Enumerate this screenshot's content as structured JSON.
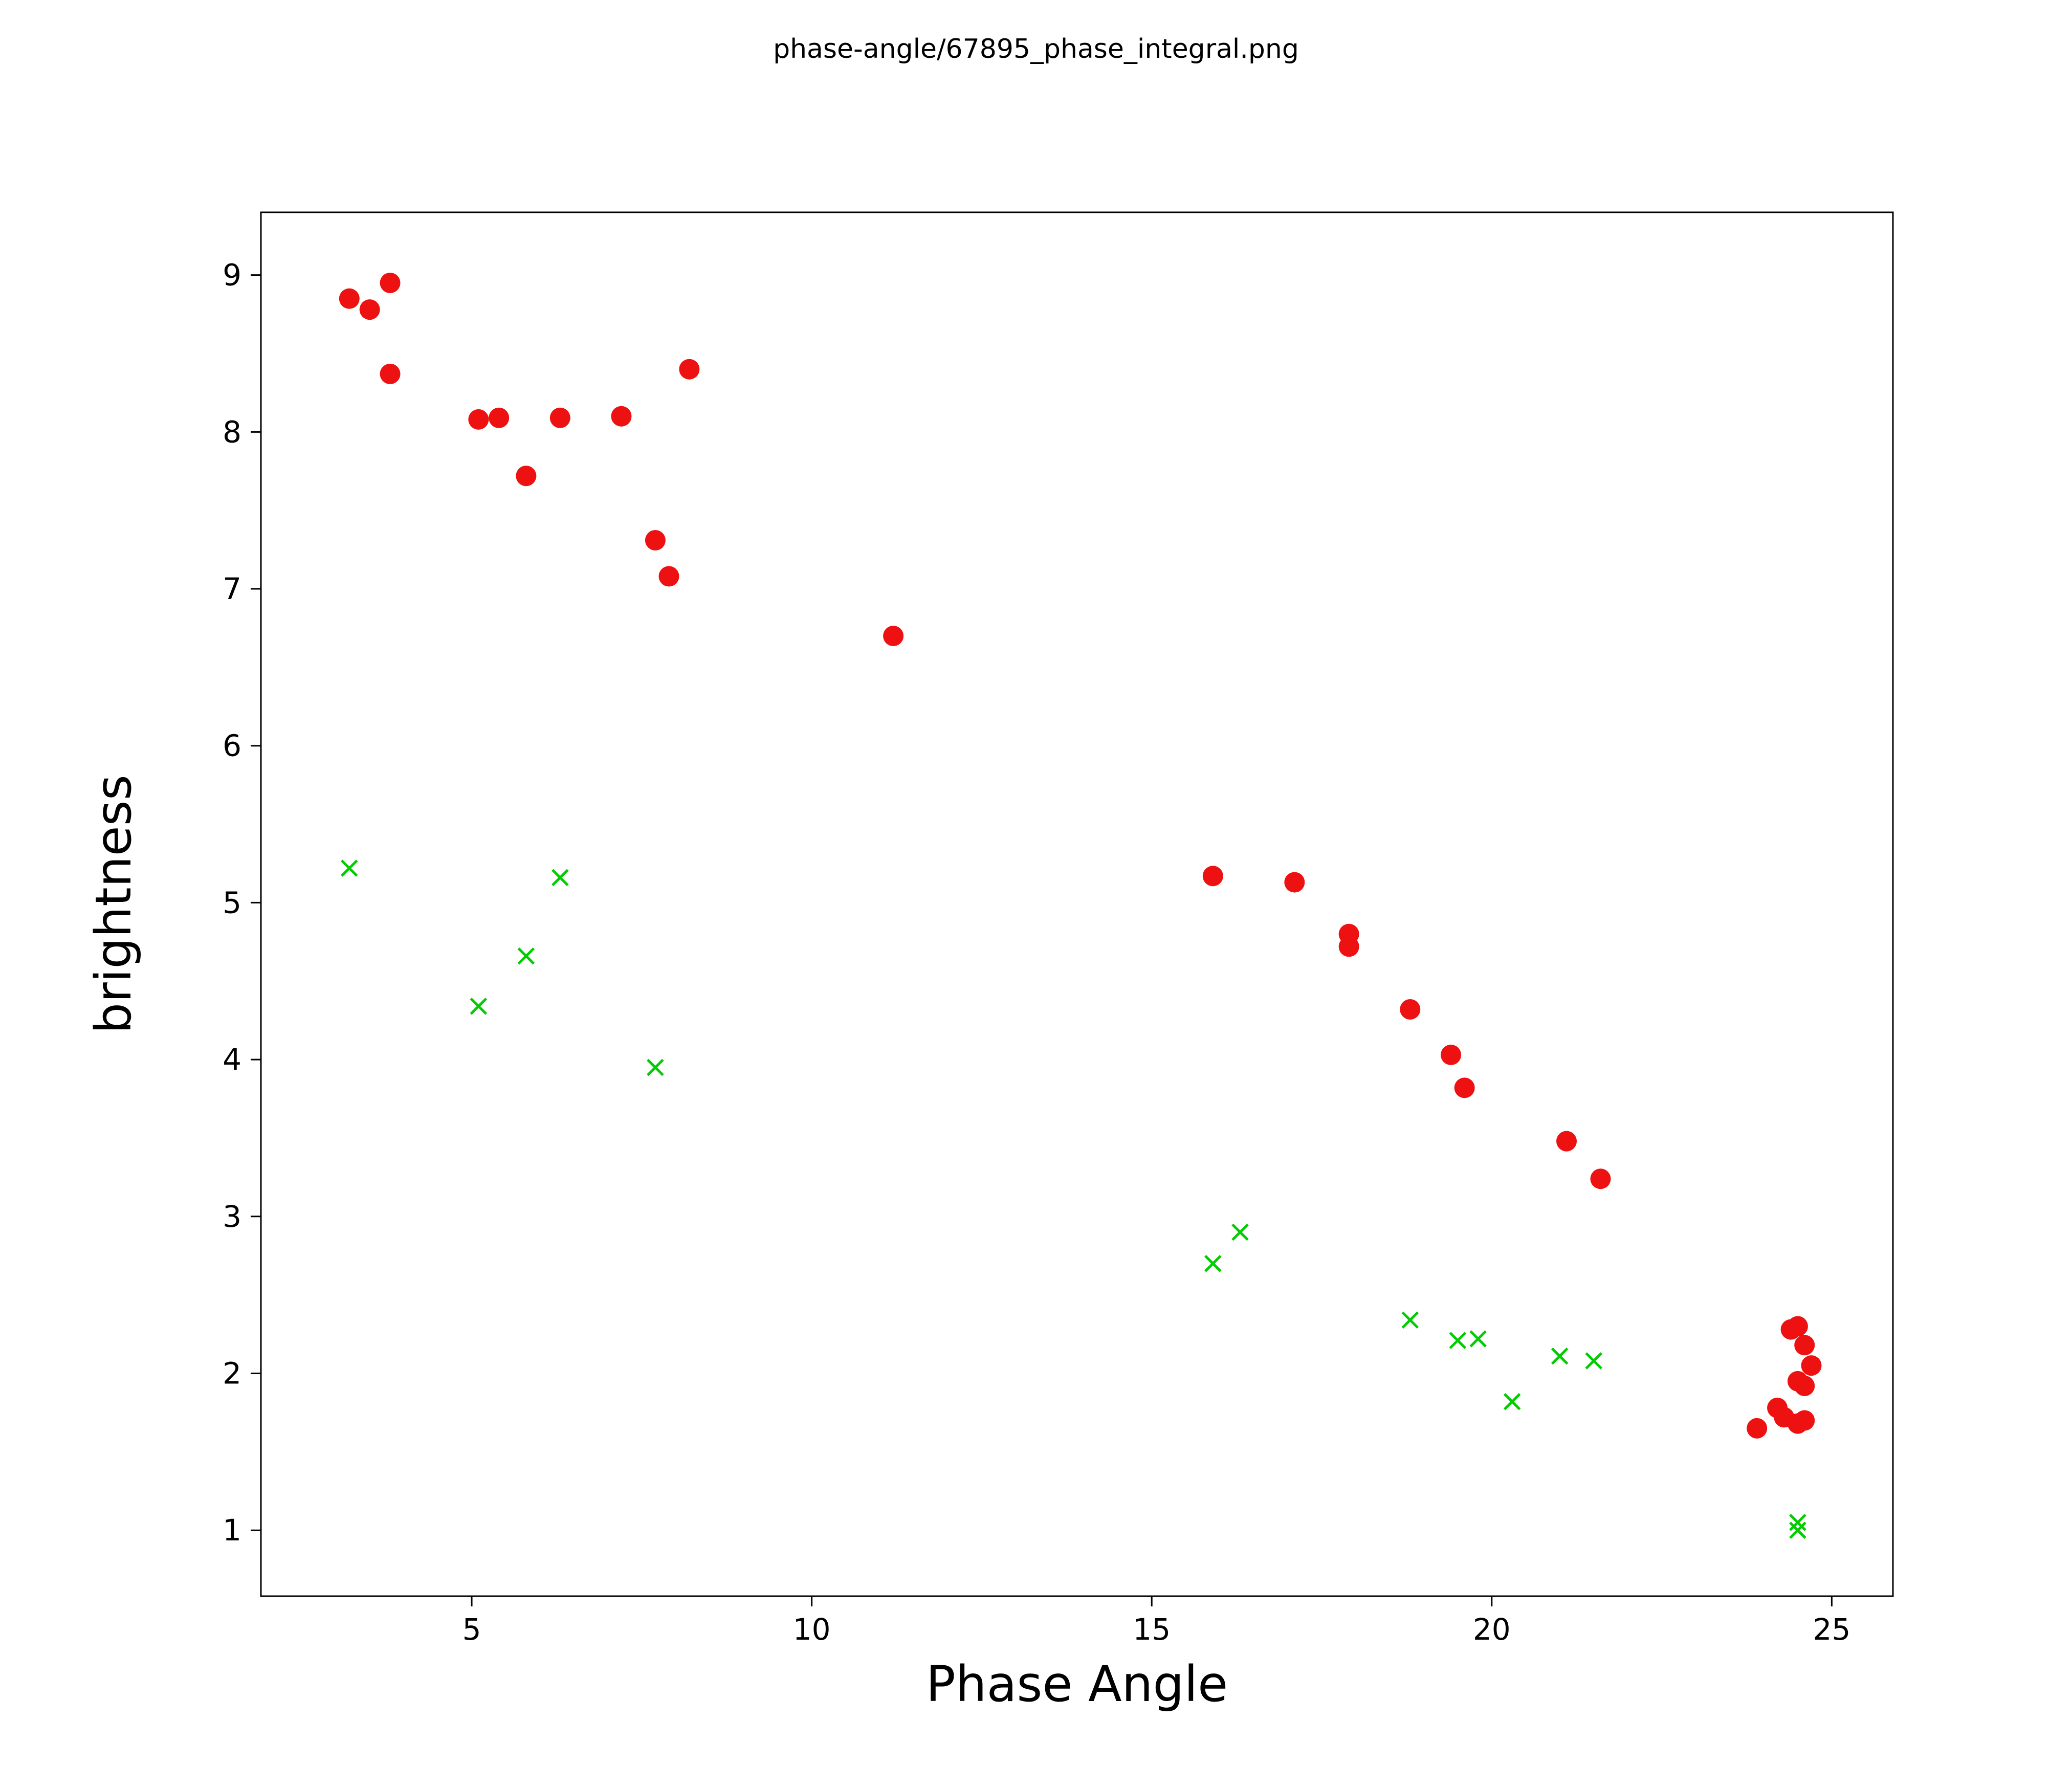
{
  "figure_title": "phase-angle/67895_phase_integral.png",
  "chart_data": {
    "type": "scatter",
    "title": "phase-angle/67895_phase_integral.png",
    "xlabel": "Phase Angle",
    "ylabel": "brightness",
    "xlim": [
      1.9,
      25.9
    ],
    "ylim": [
      0.58,
      9.4
    ],
    "x_ticks": [
      5,
      10,
      15,
      20,
      25
    ],
    "y_ticks": [
      1,
      2,
      3,
      4,
      5,
      6,
      7,
      8,
      9
    ],
    "grid": false,
    "legend": null,
    "series": [
      {
        "name": "red-circles",
        "marker": "circle",
        "color": "#ee1111",
        "points": [
          [
            3.2,
            8.85
          ],
          [
            3.5,
            8.78
          ],
          [
            3.8,
            8.95
          ],
          [
            3.8,
            8.37
          ],
          [
            5.1,
            8.08
          ],
          [
            5.4,
            8.09
          ],
          [
            5.8,
            7.72
          ],
          [
            6.3,
            8.09
          ],
          [
            7.2,
            8.1
          ],
          [
            7.7,
            7.31
          ],
          [
            7.9,
            7.08
          ],
          [
            8.2,
            8.4
          ],
          [
            11.2,
            6.7
          ],
          [
            15.9,
            5.17
          ],
          [
            17.1,
            5.13
          ],
          [
            17.9,
            4.8
          ],
          [
            17.9,
            4.72
          ],
          [
            18.8,
            4.32
          ],
          [
            19.4,
            4.03
          ],
          [
            19.6,
            3.82
          ],
          [
            21.1,
            3.48
          ],
          [
            21.6,
            3.24
          ],
          [
            23.9,
            1.65
          ],
          [
            24.2,
            1.78
          ],
          [
            24.3,
            1.72
          ],
          [
            24.4,
            2.28
          ],
          [
            24.5,
            2.3
          ],
          [
            24.5,
            1.95
          ],
          [
            24.5,
            1.68
          ],
          [
            24.6,
            2.18
          ],
          [
            24.6,
            1.92
          ],
          [
            24.6,
            1.7
          ],
          [
            24.7,
            2.05
          ]
        ]
      },
      {
        "name": "green-crosses",
        "marker": "x",
        "color": "#00cc00",
        "points": [
          [
            3.2,
            5.22
          ],
          [
            5.1,
            4.34
          ],
          [
            5.8,
            4.66
          ],
          [
            6.3,
            5.16
          ],
          [
            7.7,
            3.95
          ],
          [
            15.9,
            2.7
          ],
          [
            16.3,
            2.9
          ],
          [
            18.8,
            2.34
          ],
          [
            19.5,
            2.21
          ],
          [
            19.8,
            2.22
          ],
          [
            20.3,
            1.82
          ],
          [
            21.0,
            2.11
          ],
          [
            21.5,
            2.08
          ],
          [
            24.5,
            1.05
          ],
          [
            24.5,
            1.0
          ]
        ]
      }
    ]
  }
}
